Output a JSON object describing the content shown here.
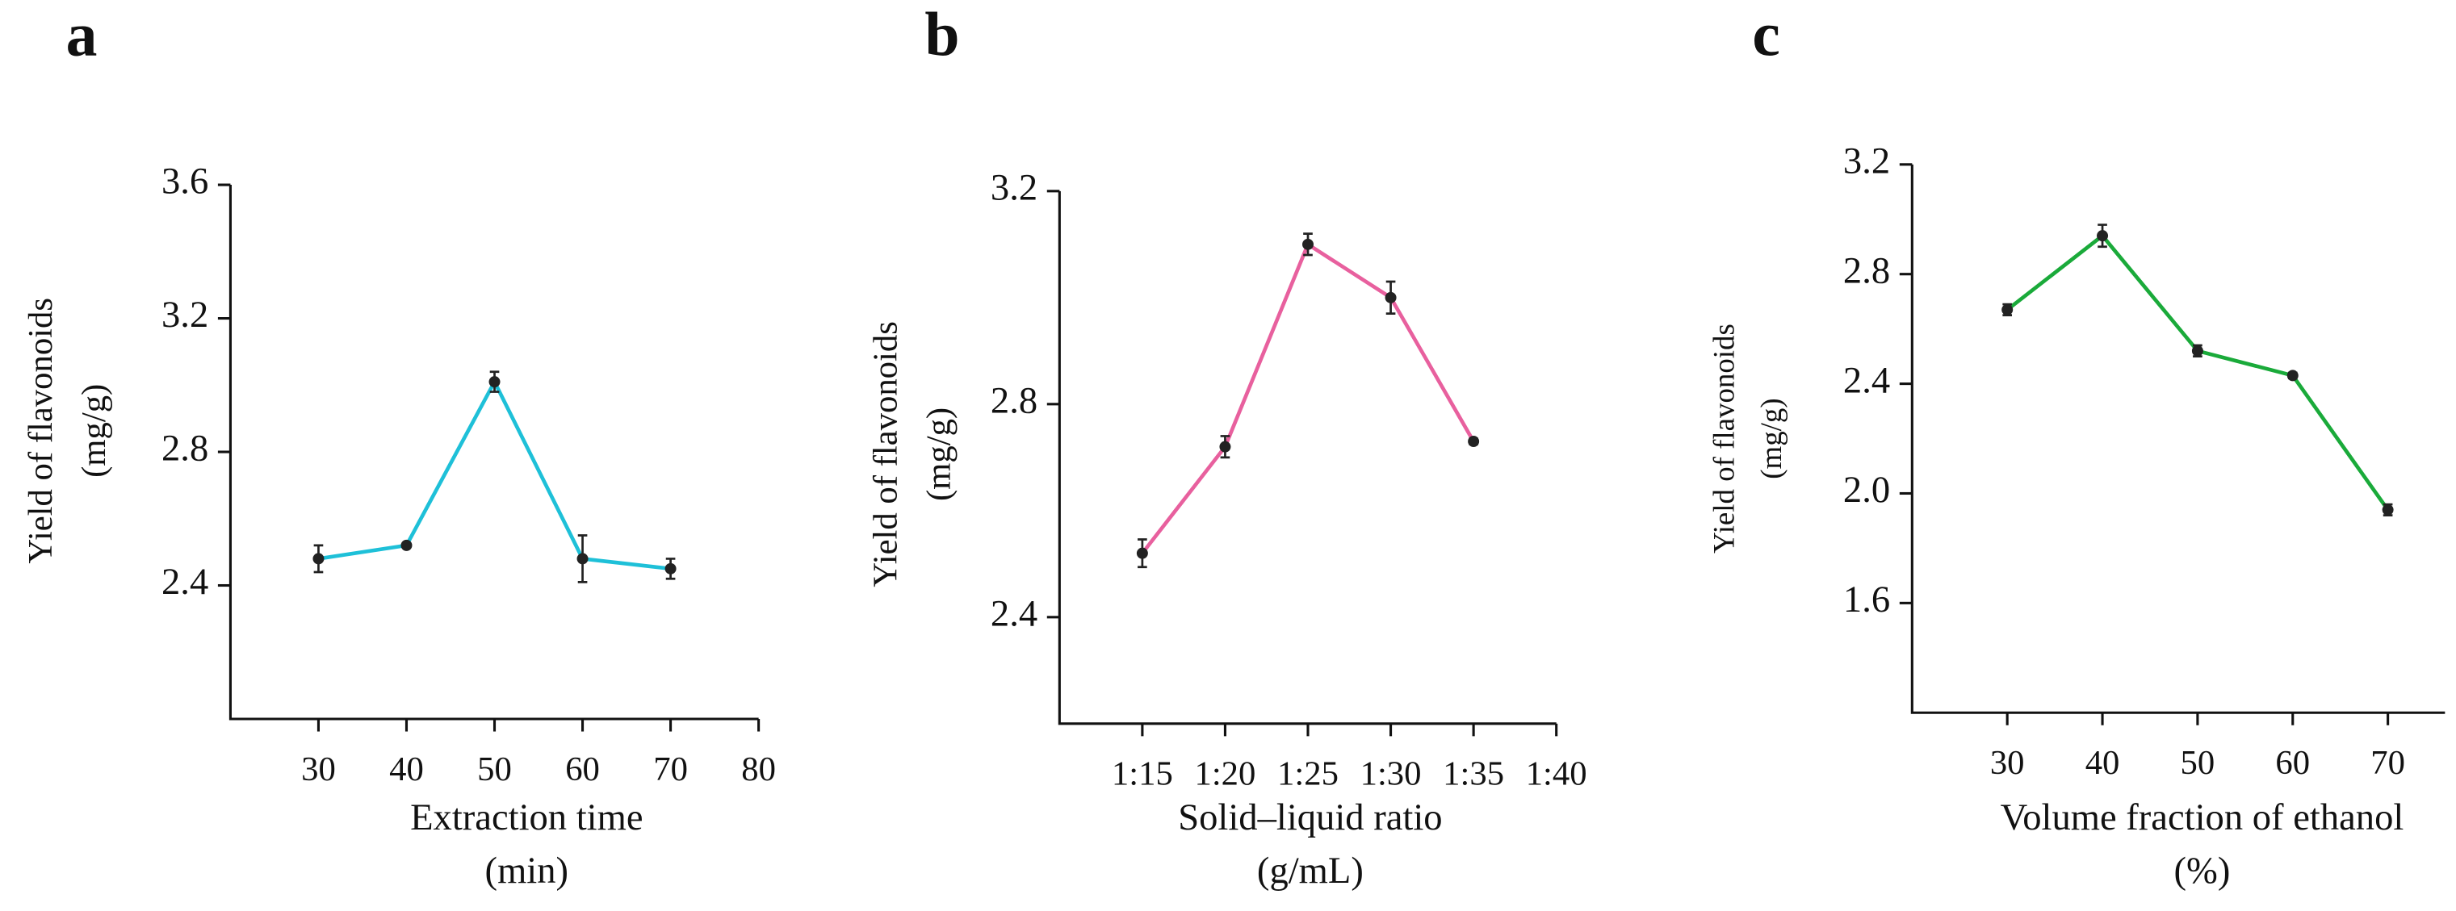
{
  "chart_data": [
    {
      "type": "line",
      "panel": "a",
      "ylabel": [
        "Yield of flavonoids",
        "(mg/g)"
      ],
      "xlabel": [
        "Extraction time",
        "(min)"
      ],
      "x": [
        30,
        40,
        50,
        60,
        70
      ],
      "xlim": [
        20,
        80
      ],
      "xticks": [
        30,
        40,
        50,
        60,
        70,
        80
      ],
      "ylim": [
        2.0,
        3.6
      ],
      "yticks": [
        2.4,
        2.8,
        3.2,
        3.6
      ],
      "series": [
        {
          "color": "#1ec0d8",
          "values": [
            2.48,
            2.52,
            3.01,
            2.48,
            2.45
          ],
          "errors": [
            0.04,
            0.005,
            0.03,
            0.07,
            0.03
          ]
        }
      ]
    },
    {
      "type": "line",
      "panel": "b",
      "ylabel": [
        "Yield of flavonoids",
        "(mg/g)"
      ],
      "xlabel": [
        "Solid–liquid ratio",
        "(g/mL)"
      ],
      "categories": [
        "1:15",
        "1:20",
        "1:25",
        "1:30",
        "1:35",
        "1:40"
      ],
      "ylim": [
        2.2,
        3.2
      ],
      "yticks": [
        2.4,
        2.8,
        3.2
      ],
      "series": [
        {
          "color": "#e8609e",
          "values": [
            2.52,
            2.72,
            3.1,
            3.0,
            2.73,
            null
          ],
          "errors": [
            0.026,
            0.02,
            0.02,
            0.03,
            0.005,
            null
          ]
        }
      ]
    },
    {
      "type": "line",
      "panel": "c",
      "ylabel": [
        "Yield of flavonoids",
        "(mg/g)"
      ],
      "xlabel": [
        "Volume fraction of ethanol",
        "(%)"
      ],
      "x": [
        30,
        40,
        50,
        60,
        70
      ],
      "xlim": [
        20,
        76
      ],
      "xticks": [
        30,
        40,
        50,
        60,
        70
      ],
      "ylim": [
        1.2,
        3.2
      ],
      "yticks": [
        1.6,
        {
          "value": 2,
          "label": "2.0"
        },
        2.4,
        2.8,
        3.2
      ],
      "series": [
        {
          "color": "#1aaa3a",
          "values": [
            2.67,
            2.94,
            2.52,
            2.43,
            1.94
          ],
          "errors": [
            0.02,
            0.04,
            0.02,
            0.01,
            0.02
          ]
        }
      ]
    }
  ]
}
